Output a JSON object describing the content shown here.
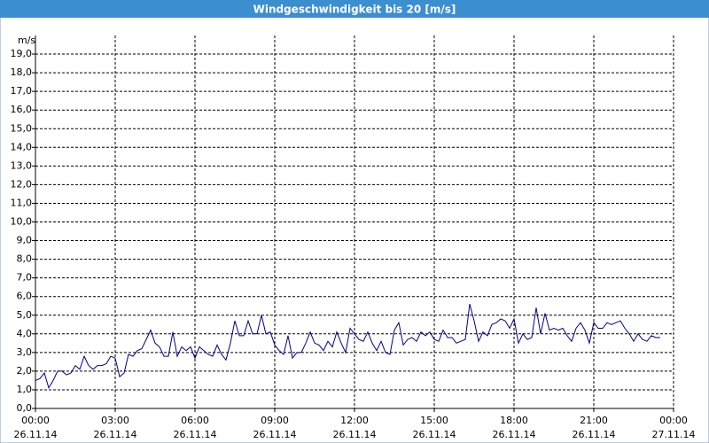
{
  "chart_data": {
    "type": "line",
    "title": "Windgeschwindigkeit bis 20 [m/s]",
    "y_label": "m/s",
    "x": [
      0,
      10,
      20,
      30,
      40,
      50,
      60,
      70,
      80,
      90,
      100,
      110,
      120,
      130,
      140,
      150,
      160,
      170,
      180,
      190,
      200,
      210,
      220,
      230,
      240,
      250,
      260,
      270,
      280,
      290,
      300,
      310,
      320,
      330,
      340,
      350,
      360,
      370,
      380,
      390,
      400,
      410,
      420,
      430,
      440,
      450,
      460,
      470,
      480,
      490,
      500,
      510,
      520,
      530,
      540,
      550,
      560,
      570,
      580,
      590,
      600,
      610,
      620,
      630,
      640,
      650,
      660,
      670,
      680,
      690,
      700,
      710,
      720,
      730,
      740,
      750,
      760,
      770,
      780,
      790,
      800,
      810,
      820,
      830,
      840,
      850,
      860,
      870,
      880,
      890,
      900,
      910,
      920,
      930,
      940,
      950,
      960,
      970,
      980,
      990,
      1000,
      1010,
      1020,
      1030,
      1040,
      1050,
      1060,
      1070,
      1080,
      1090,
      1100,
      1110,
      1120,
      1130,
      1140,
      1150,
      1160,
      1170,
      1180,
      1190,
      1200,
      1210,
      1220,
      1230,
      1240,
      1250,
      1260,
      1270,
      1280,
      1290,
      1300,
      1310,
      1320,
      1330,
      1340,
      1350,
      1360,
      1370,
      1380,
      1390,
      1400,
      1410
    ],
    "series": [
      {
        "color": "#00008b",
        "values": [
          1.5,
          1.6,
          1.9,
          1.1,
          1.5,
          2.0,
          2.0,
          1.8,
          1.9,
          2.3,
          2.1,
          2.8,
          2.3,
          2.1,
          2.3,
          2.3,
          2.4,
          2.8,
          2.7,
          1.7,
          1.9,
          2.9,
          2.8,
          3.1,
          3.2,
          3.7,
          4.2,
          3.5,
          3.3,
          2.8,
          2.8,
          4.1,
          2.8,
          3.3,
          3.1,
          3.3,
          2.7,
          3.3,
          3.1,
          2.9,
          2.8,
          3.4,
          2.9,
          2.6,
          3.5,
          4.7,
          3.9,
          3.9,
          4.7,
          4.0,
          4.0,
          5.0,
          4.0,
          4.1,
          3.4,
          3.1,
          2.9,
          3.9,
          2.7,
          3.0,
          3.0,
          3.5,
          4.1,
          3.5,
          3.4,
          3.1,
          3.6,
          3.3,
          4.1,
          3.5,
          3.0,
          4.3,
          4.0,
          3.7,
          3.6,
          4.1,
          3.5,
          3.1,
          3.6,
          3.0,
          2.9,
          4.2,
          4.6,
          3.4,
          3.7,
          3.8,
          3.6,
          4.1,
          3.9,
          4.1,
          3.7,
          3.6,
          4.2,
          3.8,
          3.8,
          3.5,
          3.6,
          3.7,
          5.6,
          4.7,
          3.6,
          4.1,
          3.9,
          4.5,
          4.6,
          4.8,
          4.7,
          4.3,
          4.8,
          3.5,
          4.0,
          3.7,
          3.8,
          5.4,
          4.0,
          5.1,
          4.2,
          4.3,
          4.2,
          4.3,
          3.9,
          3.6,
          4.3,
          4.6,
          4.2,
          3.5,
          4.6,
          4.3,
          4.3,
          4.6,
          4.5,
          4.6,
          4.7,
          4.3,
          4.0,
          3.6,
          4.0,
          3.7,
          3.6,
          3.9,
          3.8,
          3.8
        ]
      }
    ],
    "xlim": [
      0,
      1440
    ],
    "xticks": [
      {
        "value": 0,
        "label": "00:00"
      },
      {
        "value": 180,
        "label": "03:00"
      },
      {
        "value": 360,
        "label": "06:00"
      },
      {
        "value": 540,
        "label": "09:00"
      },
      {
        "value": 720,
        "label": "12:00"
      },
      {
        "value": 900,
        "label": "15:00"
      },
      {
        "value": 1080,
        "label": "18:00"
      },
      {
        "value": 1260,
        "label": "21:00"
      },
      {
        "value": 1440,
        "label": "00:00"
      }
    ],
    "xtick_dates": [
      "26.11.14",
      "26.11.14",
      "26.11.14",
      "26.11.14",
      "26.11.14",
      "26.11.14",
      "26.11.14",
      "26.11.14",
      "27.11.14"
    ],
    "ylim": [
      0,
      20
    ],
    "yticks": [
      {
        "value": 0,
        "label": "0,0"
      },
      {
        "value": 1,
        "label": "1,0"
      },
      {
        "value": 2,
        "label": "2,0"
      },
      {
        "value": 3,
        "label": "3,0"
      },
      {
        "value": 4,
        "label": "4,0"
      },
      {
        "value": 5,
        "label": "5,0"
      },
      {
        "value": 6,
        "label": "6,0"
      },
      {
        "value": 7,
        "label": "7,0"
      },
      {
        "value": 8,
        "label": "8,0"
      },
      {
        "value": 9,
        "label": "9,0"
      },
      {
        "value": 10,
        "label": "10,0"
      },
      {
        "value": 11,
        "label": "11,0"
      },
      {
        "value": 12,
        "label": "12,0"
      },
      {
        "value": 13,
        "label": "13,0"
      },
      {
        "value": 14,
        "label": "14,0"
      },
      {
        "value": 15,
        "label": "15,0"
      },
      {
        "value": 16,
        "label": "16,0"
      },
      {
        "value": 17,
        "label": "17,0"
      },
      {
        "value": 18,
        "label": "18,0"
      },
      {
        "value": 19,
        "label": "19,0"
      }
    ],
    "grid": true
  }
}
